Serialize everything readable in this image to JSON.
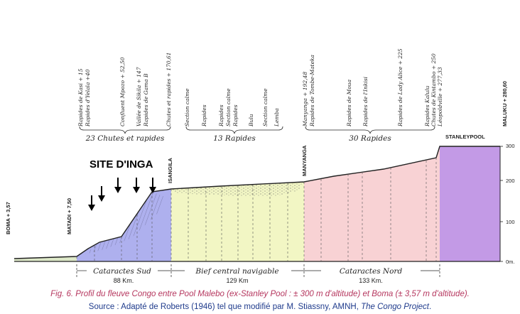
{
  "top_labels": {
    "chutes": [
      "Rapides de Kasi + 15",
      "Rapides d'Yelala +40",
      "Confluent Mpozo + 52,50",
      "Vallée de Sikila + 147",
      "Rapides de Gama B",
      "Chutes et rapides + 170,61"
    ],
    "rapides": [
      "Section calme",
      "Rapides",
      "Rapides",
      "Section calme",
      "Rapides",
      "Bulu",
      "Section calme",
      "Lemba"
    ],
    "nord": [
      "Manyanga + 192,48",
      "Rapides de Tombe-Mateka",
      "Rapides de Moua",
      "Rapides de l'Inkisi",
      "Rapides de Lady Alice + 225",
      "Rapides Kalulu",
      "Chutes de Kintambo + 250",
      "Léopoldville + 277,33"
    ]
  },
  "groups": {
    "chutes": "23 Chutes et rapides",
    "rapides": "13 Rapides",
    "nord": "30 Rapides"
  },
  "places": {
    "boma": "BOMA + 3,57",
    "matadi": "MATADI + 7,50",
    "isangila": "ISANGILA",
    "manyanga": "MANYANGA",
    "stanleypool": "STANLEYPOOL",
    "maluku": "MALUKU + 280,60"
  },
  "site_label": "SITE D'INGA",
  "y_axis": {
    "ticks": [
      "300",
      "200",
      "100",
      "0m."
    ]
  },
  "sections": [
    {
      "name": "Cataractes Sud",
      "km": "88 Km.",
      "color": "#aeb0ee"
    },
    {
      "name": "Bief central navigable",
      "km": "129 Km",
      "color": "#f2f6c4"
    },
    {
      "name": "Cataractes Nord",
      "km": "133 Km.",
      "color": "#f8d2d4"
    }
  ],
  "colors": {
    "stanleypool_fill": "#c39ae6",
    "lower_fill": "#dde8c8",
    "caption_primary": "#b5365e",
    "caption_source": "#1f3b8c"
  },
  "caption": {
    "line1": "Fig. 6. Profil du fleuve Congo entre Pool Malebo (ex-Stanley Pool : ± 300 m d'altitude) et Boma (± 3,57 m d'altitude).",
    "line2_prefix": "Source : Adapté de Roberts (1946) tel que modifié par M. Stiassny, AMNH, ",
    "line2_title": "The Congo Project",
    "line2_suffix": "."
  }
}
